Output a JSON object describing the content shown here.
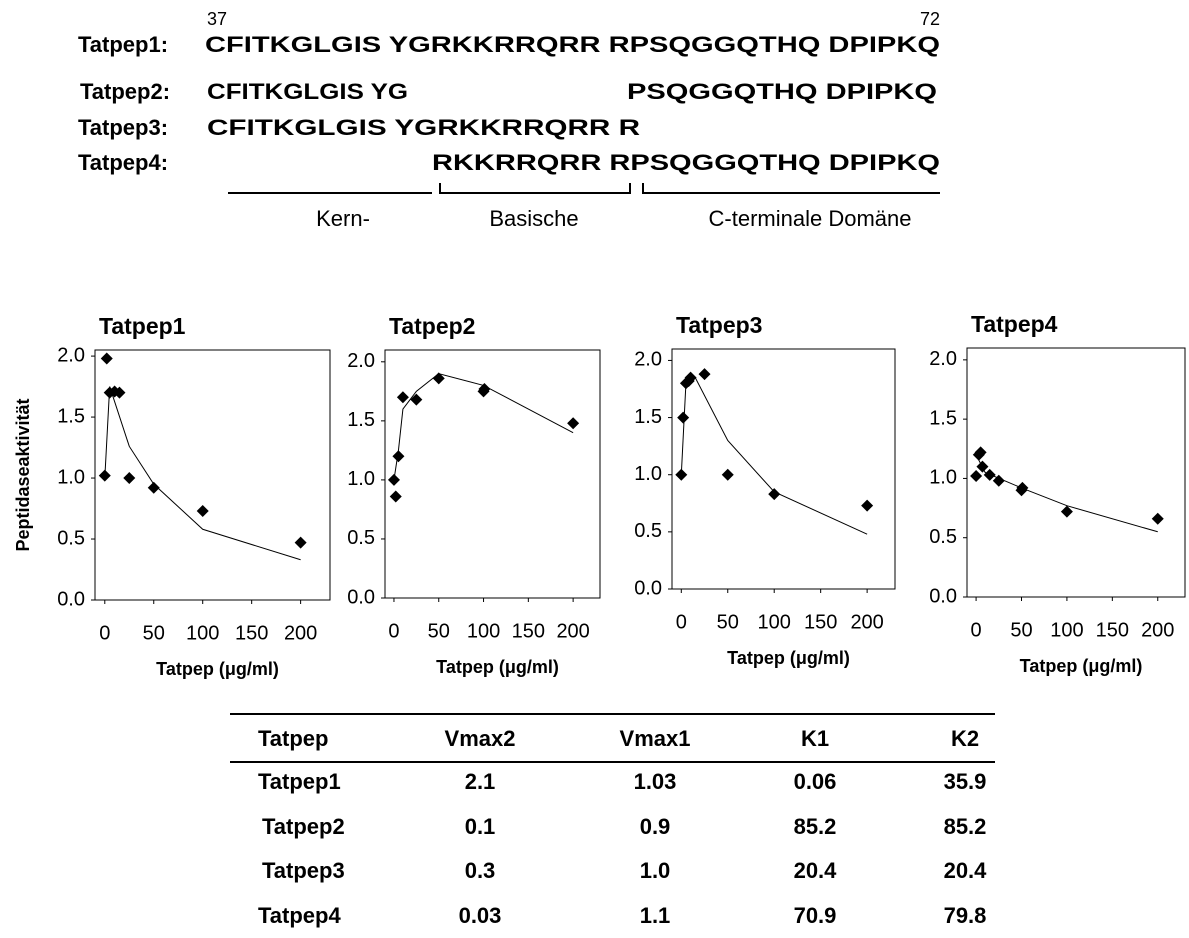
{
  "sequences": {
    "start": "37",
    "end": "72",
    "rows": [
      {
        "label": "Tatpep1:",
        "segments": [
          "CFITKGLGIS YGRKKRRQRR RPSQGGQTHQ DPIPKQ"
        ]
      },
      {
        "label": "Tatpep2:",
        "segments": [
          "CFITKGLGIS YG",
          "PSQGGQTHQ DPIPKQ"
        ]
      },
      {
        "label": "Tatpep3:",
        "segments": [
          "CFITKGLGIS YGRKKRRQRR R"
        ]
      },
      {
        "label": "Tatpep4:",
        "segments": [
          "RKKRRQRR RPSQGGQTHQ DPIPKQ"
        ]
      }
    ],
    "domains": [
      "Kern-",
      "Basische",
      "C-terminale Domäne"
    ]
  },
  "chart_data": [
    {
      "type": "scatter",
      "title": "Tatpep1",
      "xlabel": "Tatpep (μg/ml)",
      "ylabel": "Peptidaseaktivität",
      "points": {
        "color": "#000000",
        "x": [
          0,
          2,
          5,
          10,
          15,
          25,
          50,
          100,
          200
        ],
        "values": [
          1.02,
          1.98,
          1.7,
          1.71,
          1.7,
          1.0,
          0.92,
          0.73,
          0.47
        ]
      },
      "fit": {
        "color": "#000000",
        "x": [
          0,
          5,
          25,
          50,
          100,
          200
        ],
        "values": [
          1.0,
          1.75,
          1.26,
          0.95,
          0.58,
          0.33
        ]
      },
      "xlim": [
        -10,
        230
      ],
      "ylim": [
        0,
        2.05
      ],
      "xticks": [
        0,
        50,
        100,
        150,
        200
      ],
      "yticks": [
        {
          "value": 0,
          "label": "0.0"
        },
        0.5,
        {
          "value": 1,
          "label": "1.0"
        },
        1.5,
        {
          "value": 2,
          "label": "2.0"
        }
      ]
    },
    {
      "type": "scatter",
      "title": "Tatpep2",
      "xlabel": "Tatpep (μg/ml)",
      "points": {
        "color": "#000000",
        "x": [
          0,
          2,
          5,
          10,
          25,
          50,
          100,
          101,
          200
        ],
        "values": [
          1.0,
          0.86,
          1.2,
          1.7,
          1.68,
          1.86,
          1.75,
          1.77,
          1.48
        ]
      },
      "fit": {
        "color": "#000000",
        "x": [
          0,
          5,
          10,
          25,
          50,
          100,
          200
        ],
        "values": [
          1.0,
          1.25,
          1.6,
          1.75,
          1.9,
          1.8,
          1.4
        ]
      },
      "xlim": [
        -10,
        230
      ],
      "ylim": [
        0,
        2.1
      ],
      "xticks": [
        0,
        50,
        100,
        150,
        200
      ],
      "yticks": [
        {
          "value": 0,
          "label": "0.0"
        },
        0.5,
        {
          "value": 1,
          "label": "1.0"
        },
        1.5,
        {
          "value": 2,
          "label": "2.0"
        }
      ]
    },
    {
      "type": "scatter",
      "title": "Tatpep3",
      "xlabel": "Tatpep (μg/ml)",
      "points": {
        "color": "#000000",
        "x": [
          0,
          2,
          5,
          8,
          10,
          25,
          50,
          100,
          200
        ],
        "values": [
          1.0,
          1.5,
          1.8,
          1.82,
          1.85,
          1.88,
          1.0,
          0.83,
          0.73
        ]
      },
      "fit": {
        "color": "#000000",
        "x": [
          0,
          5,
          15,
          50,
          100,
          200
        ],
        "values": [
          1.0,
          1.8,
          1.85,
          1.3,
          0.85,
          0.48
        ]
      },
      "xlim": [
        -10,
        230
      ],
      "ylim": [
        0,
        2.1
      ],
      "xticks": [
        0,
        50,
        100,
        150,
        200
      ],
      "yticks": [
        {
          "value": 0,
          "label": "0.0"
        },
        0.5,
        {
          "value": 1,
          "label": "1.0"
        },
        1.5,
        {
          "value": 2,
          "label": "2.0"
        }
      ]
    },
    {
      "type": "scatter",
      "title": "Tatpep4",
      "xlabel": "Tatpep (μg/ml)",
      "points": {
        "color": "#000000",
        "x": [
          0,
          3,
          5,
          7,
          15,
          25,
          50,
          51,
          100,
          200
        ],
        "values": [
          1.02,
          1.2,
          1.22,
          1.1,
          1.03,
          0.98,
          0.9,
          0.92,
          0.72,
          0.66
        ]
      },
      "fit": {
        "color": "#000000",
        "x": [
          0,
          10,
          50,
          100,
          200
        ],
        "values": [
          1.2,
          1.05,
          0.92,
          0.77,
          0.55
        ]
      },
      "xlim": [
        -10,
        230
      ],
      "ylim": [
        0,
        2.1
      ],
      "xticks": [
        0,
        50,
        100,
        150,
        200
      ],
      "yticks": [
        {
          "value": 0,
          "label": "0.0"
        },
        0.5,
        {
          "value": 1,
          "label": "1.0"
        },
        1.5,
        {
          "value": 2,
          "label": "2.0"
        }
      ]
    }
  ],
  "table": {
    "header": [
      "Tatpep",
      "Vmax2",
      "Vmax1",
      "K1",
      "K2"
    ],
    "rows": [
      [
        "Tatpep1",
        "2.1",
        "1.03",
        "0.06",
        "35.9"
      ],
      [
        "Tatpep2",
        "0.1",
        "0.9",
        "85.2",
        "85.2"
      ],
      [
        "Tatpep3",
        "0.3",
        "1.0",
        "20.4",
        "20.4"
      ],
      [
        "Tatpep4",
        "0.03",
        "1.1",
        "70.9",
        "79.8"
      ]
    ]
  }
}
